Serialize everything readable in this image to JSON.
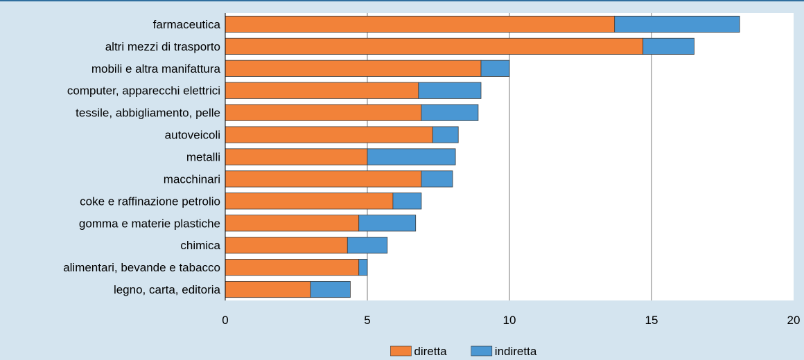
{
  "chart_data": {
    "type": "bar",
    "orientation": "horizontal",
    "stacked": true,
    "title": "",
    "xlabel": "",
    "ylabel": "",
    "categories": [
      "farmaceutica",
      "altri mezzi di trasporto",
      "mobili e altra manifattura",
      "computer, apparecchi elettrici",
      "tessile, abbigliamento, pelle",
      "autoveicoli",
      "metalli",
      "macchinari",
      "coke e raffinazione petrolio",
      "gomma e materie plastiche",
      "chimica",
      "alimentari, bevande e tabacco",
      "legno, carta, editoria"
    ],
    "series": [
      {
        "name": "diretta",
        "color": "#f28239",
        "values": [
          13.7,
          14.7,
          9.0,
          6.8,
          6.9,
          7.3,
          5.0,
          6.9,
          5.9,
          4.7,
          4.3,
          4.7,
          3.0
        ]
      },
      {
        "name": "indiretta",
        "color": "#4a97d3",
        "values": [
          4.4,
          1.8,
          1.0,
          2.2,
          2.0,
          0.9,
          3.1,
          1.1,
          1.0,
          2.0,
          1.4,
          0.3,
          1.4
        ]
      }
    ],
    "xlim": [
      0,
      20
    ],
    "xticks": [
      "0",
      "5",
      "10",
      "15",
      "20"
    ],
    "grid": "vertical",
    "legend": "bottom-center"
  }
}
